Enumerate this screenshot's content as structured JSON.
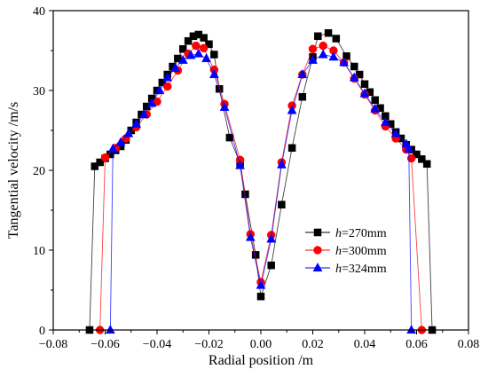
{
  "chart_data": {
    "type": "scatter",
    "xlabel": "Radial position /m",
    "ylabel": "Tangential velocity /m/s",
    "xlim": [
      -0.08,
      0.08
    ],
    "ylim": [
      0,
      40
    ],
    "x_ticks": [
      -0.08,
      -0.06,
      -0.04,
      -0.02,
      0.0,
      0.02,
      0.04,
      0.06,
      0.08
    ],
    "x_tick_labels": [
      "−0.08",
      "−0.06",
      "−0.04",
      "−0.02",
      "0.00",
      "0.02",
      "0.04",
      "0.06",
      "0.08"
    ],
    "y_ticks": [
      0,
      10,
      20,
      30,
      40
    ],
    "y_tick_labels": [
      "0",
      "10",
      "20",
      "30",
      "40"
    ],
    "grid": false,
    "legend_position": "lower-right",
    "series": [
      {
        "name": "h=270mm",
        "legend_var": "h",
        "legend_rest": "=270mm",
        "marker": "square",
        "color": "#000000",
        "x": [
          -0.066,
          -0.064,
          -0.062,
          -0.06,
          -0.058,
          -0.056,
          -0.054,
          -0.052,
          -0.05,
          -0.048,
          -0.046,
          -0.044,
          -0.042,
          -0.04,
          -0.038,
          -0.036,
          -0.034,
          -0.032,
          -0.03,
          -0.028,
          -0.026,
          -0.024,
          -0.022,
          -0.02,
          -0.018,
          -0.016,
          -0.012,
          -0.008,
          -0.006,
          -0.002,
          0.0,
          0.004,
          0.008,
          0.012,
          0.016,
          0.02,
          0.022,
          0.026,
          0.029,
          0.033,
          0.036,
          0.038,
          0.04,
          0.042,
          0.044,
          0.046,
          0.048,
          0.05,
          0.052,
          0.054,
          0.056,
          0.058,
          0.06,
          0.062,
          0.064,
          0.066
        ],
        "y": [
          0,
          20.5,
          21.0,
          21.5,
          22.0,
          22.5,
          23.0,
          23.8,
          25.0,
          26.0,
          27.0,
          28.0,
          29.0,
          30.0,
          31.0,
          32.0,
          33.0,
          34.0,
          35.2,
          36.2,
          36.8,
          37.0,
          36.6,
          35.8,
          34.5,
          30.2,
          24.1,
          20.9,
          17.0,
          9.4,
          4.2,
          8.1,
          15.7,
          22.8,
          29.2,
          34.2,
          36.8,
          37.2,
          36.5,
          34.3,
          33.0,
          32.0,
          30.8,
          29.8,
          28.8,
          27.8,
          26.8,
          25.8,
          24.8,
          24.0,
          23.2,
          22.6,
          22.0,
          21.4,
          20.8,
          0
        ]
      },
      {
        "name": "h=300mm",
        "legend_var": "h",
        "legend_rest": "=300mm",
        "marker": "circle",
        "color": "#ff0000",
        "x": [
          -0.062,
          -0.06,
          -0.056,
          -0.052,
          -0.048,
          -0.044,
          -0.04,
          -0.036,
          -0.032,
          -0.028,
          -0.025,
          -0.022,
          -0.018,
          -0.014,
          -0.008,
          -0.004,
          0.0,
          0.004,
          0.008,
          0.012,
          0.016,
          0.02,
          0.024,
          0.028,
          0.032,
          0.036,
          0.04,
          0.044,
          0.048,
          0.052,
          0.056,
          0.058,
          0.062
        ],
        "y": [
          0,
          21.6,
          22.8,
          24.0,
          25.4,
          27.0,
          28.6,
          30.5,
          32.5,
          34.6,
          35.6,
          35.3,
          32.6,
          28.3,
          21.3,
          12.0,
          6.0,
          11.9,
          21.0,
          28.1,
          32.0,
          35.2,
          35.6,
          35.0,
          33.5,
          31.5,
          29.5,
          27.5,
          25.5,
          24.0,
          22.6,
          21.5,
          0
        ]
      },
      {
        "name": "h=324mm",
        "legend_var": "h",
        "legend_rest": "=324mm",
        "marker": "triangle",
        "color": "#0000ff",
        "x": [
          -0.058,
          -0.057,
          -0.054,
          -0.051,
          -0.048,
          -0.045,
          -0.042,
          -0.039,
          -0.036,
          -0.033,
          -0.03,
          -0.027,
          -0.024,
          -0.021,
          -0.018,
          -0.014,
          -0.008,
          -0.004,
          0.0,
          0.004,
          0.008,
          0.012,
          0.016,
          0.02,
          0.024,
          0.028,
          0.032,
          0.036,
          0.04,
          0.044,
          0.048,
          0.052,
          0.056,
          0.057,
          0.058
        ],
        "y": [
          0,
          22.7,
          23.5,
          24.6,
          25.8,
          27.0,
          28.4,
          30.0,
          31.6,
          32.8,
          33.8,
          34.4,
          34.6,
          34.0,
          32.0,
          27.9,
          20.6,
          11.6,
          5.6,
          11.4,
          20.7,
          27.5,
          32.0,
          33.8,
          34.5,
          34.2,
          33.5,
          31.6,
          29.6,
          27.7,
          26.0,
          24.6,
          23.3,
          22.7,
          0
        ]
      }
    ]
  }
}
